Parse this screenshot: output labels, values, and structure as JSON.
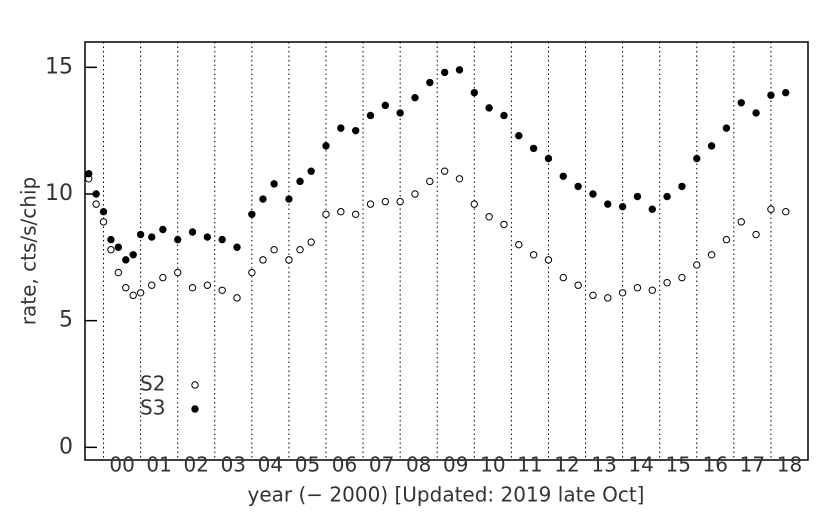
{
  "chart_data": {
    "type": "scatter",
    "xlabel": "year (− 2000)    [Updated: 2019 late Oct]",
    "ylabel": "rate, cts/s/chip",
    "x": [
      -0.4,
      -0.2,
      0,
      0.2,
      0.4,
      0.6,
      0.8,
      1.0,
      1.3,
      1.6,
      2.0,
      2.4,
      2.8,
      3.2,
      3.6,
      4.0,
      4.3,
      4.6,
      5.0,
      5.3,
      5.6,
      6.0,
      6.4,
      6.8,
      7.2,
      7.6,
      8.0,
      8.4,
      8.8,
      9.2,
      9.6,
      10.0,
      10.4,
      10.8,
      11.2,
      11.6,
      12.0,
      12.4,
      12.8,
      13.2,
      13.6,
      14.0,
      14.4,
      14.8,
      15.2,
      15.6,
      16.0,
      16.4,
      16.8,
      17.2,
      17.6,
      18.0,
      18.4
    ],
    "series": [
      {
        "name": "S2",
        "color": "#000000",
        "filled": false,
        "values": [
          10.6,
          9.6,
          8.9,
          7.8,
          6.9,
          6.3,
          6.0,
          6.1,
          6.4,
          6.7,
          6.9,
          6.3,
          6.4,
          6.2,
          5.9,
          6.9,
          7.4,
          7.8,
          7.4,
          7.8,
          8.1,
          9.2,
          9.3,
          9.2,
          9.6,
          9.7,
          9.7,
          10.0,
          10.5,
          10.9,
          10.6,
          9.6,
          9.1,
          8.8,
          8.0,
          7.6,
          7.4,
          6.7,
          6.4,
          6.0,
          5.9,
          6.1,
          6.3,
          6.2,
          6.5,
          6.7,
          7.2,
          7.6,
          8.2,
          8.9,
          8.4,
          9.4,
          9.3
        ]
      },
      {
        "name": "S3",
        "color": "#000000",
        "filled": true,
        "values": [
          10.8,
          10.0,
          9.3,
          8.2,
          7.9,
          7.4,
          7.6,
          8.4,
          8.3,
          8.6,
          8.2,
          8.5,
          8.3,
          8.2,
          7.9,
          9.2,
          9.8,
          10.4,
          9.8,
          10.5,
          10.9,
          11.9,
          12.6,
          12.5,
          13.1,
          13.5,
          13.2,
          13.8,
          14.4,
          14.8,
          14.9,
          14.0,
          13.4,
          13.1,
          12.3,
          11.8,
          11.4,
          10.7,
          10.3,
          10.0,
          9.6,
          9.5,
          9.9,
          9.4,
          9.9,
          10.3,
          11.4,
          11.9,
          12.6,
          13.6,
          13.2,
          13.9,
          14.0
        ]
      }
    ],
    "xlim": [
      -0.5,
      19
    ],
    "ylim": [
      -0.5,
      16
    ],
    "yticks": [
      0,
      5,
      10,
      15
    ],
    "xticks": [
      {
        "value": 0.5,
        "label": "00"
      },
      {
        "value": 1.5,
        "label": "01"
      },
      {
        "value": 2.5,
        "label": "02"
      },
      {
        "value": 3.5,
        "label": "03"
      },
      {
        "value": 4.5,
        "label": "04"
      },
      {
        "value": 5.5,
        "label": "05"
      },
      {
        "value": 6.5,
        "label": "06"
      },
      {
        "value": 7.5,
        "label": "07"
      },
      {
        "value": 8.5,
        "label": "08"
      },
      {
        "value": 9.5,
        "label": "09"
      },
      {
        "value": 10.5,
        "label": "10"
      },
      {
        "value": 11.5,
        "label": "11"
      },
      {
        "value": 12.5,
        "label": "12"
      },
      {
        "value": 13.5,
        "label": "13"
      },
      {
        "value": 14.5,
        "label": "14"
      },
      {
        "value": 15.5,
        "label": "15"
      },
      {
        "value": 16.5,
        "label": "16"
      },
      {
        "value": 17.5,
        "label": "17"
      },
      {
        "value": 18.5,
        "label": "18"
      }
    ],
    "grid": true
  }
}
